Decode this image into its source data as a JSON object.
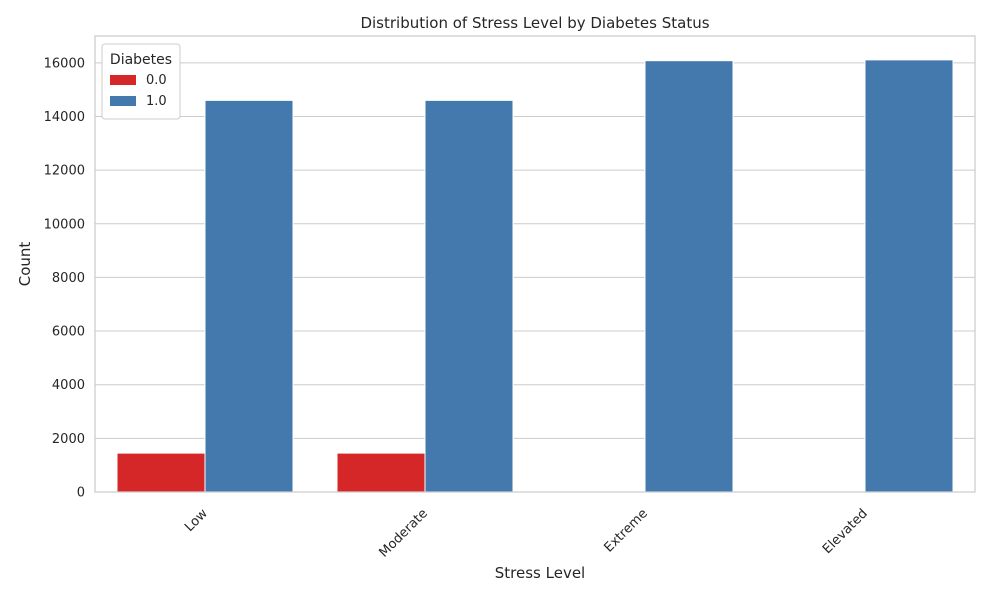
{
  "chart_data": {
    "type": "bar",
    "title": "Distribution of Stress Level by Diabetes Status",
    "xlabel": "Stress Level",
    "ylabel": "Count",
    "categories": [
      "Low",
      "Moderate",
      "Extreme",
      "Elevated"
    ],
    "series": [
      {
        "name": "0.0",
        "color": "#d62728",
        "values": [
          1450,
          1450,
          0,
          0
        ]
      },
      {
        "name": "1.0",
        "color": "#4479ad",
        "values": [
          14600,
          14600,
          16080,
          16110
        ]
      }
    ],
    "ylim": [
      0,
      17000
    ],
    "yticks": [
      0,
      2000,
      4000,
      6000,
      8000,
      10000,
      12000,
      14000,
      16000
    ],
    "grid": true,
    "legend": {
      "title": "Diabetes",
      "placement": "top-left"
    }
  }
}
